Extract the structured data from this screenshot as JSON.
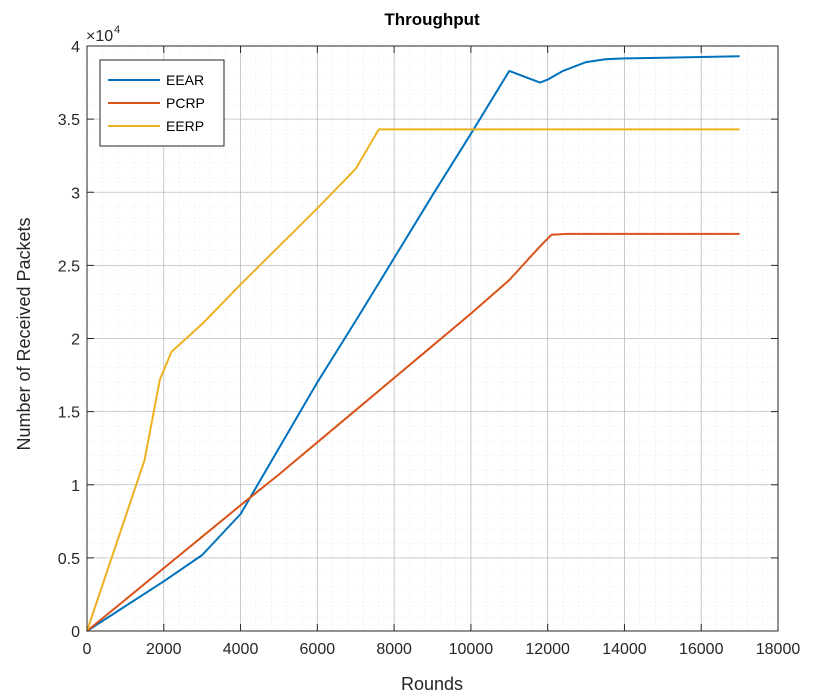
{
  "chart_data": {
    "type": "line",
    "title": "Throughput",
    "xlabel": "Rounds",
    "ylabel": "Number of Received Packets",
    "xlim": [
      0,
      18000
    ],
    "ylim": [
      0,
      40000
    ],
    "x_ticks": [
      "0",
      "2000",
      "4000",
      "6000",
      "8000",
      "10000",
      "12000",
      "14000",
      "16000",
      "18000"
    ],
    "y_ticks": [
      "0",
      "0.5",
      "1",
      "1.5",
      "2",
      "2.5",
      "3",
      "3.5",
      "4"
    ],
    "y_exponent_label": "×10",
    "y_exponent_power": "4",
    "grid": true,
    "minor_grid": true,
    "legend_position": "top-left",
    "series": [
      {
        "name": "EEAR",
        "color": "#0072BD",
        "points": [
          [
            0,
            0
          ],
          [
            1000,
            1700
          ],
          [
            2000,
            3400
          ],
          [
            3000,
            5200
          ],
          [
            4000,
            8000
          ],
          [
            5000,
            12500
          ],
          [
            6000,
            17000
          ],
          [
            7000,
            21200
          ],
          [
            8000,
            25500
          ],
          [
            9000,
            29800
          ],
          [
            10000,
            34000
          ],
          [
            11000,
            38300
          ],
          [
            11800,
            37500
          ],
          [
            12000,
            37700
          ],
          [
            12400,
            38300
          ],
          [
            13000,
            38900
          ],
          [
            13500,
            39100
          ],
          [
            14000,
            39150
          ],
          [
            15000,
            39200
          ],
          [
            16000,
            39250
          ],
          [
            17000,
            39300
          ]
        ]
      },
      {
        "name": "PCRP",
        "color": "#D95319",
        "points": [
          [
            0,
            0
          ],
          [
            1000,
            2150
          ],
          [
            2000,
            4300
          ],
          [
            3000,
            6450
          ],
          [
            4000,
            8600
          ],
          [
            5000,
            10700
          ],
          [
            6000,
            12900
          ],
          [
            7000,
            15100
          ],
          [
            8000,
            17300
          ],
          [
            9000,
            19500
          ],
          [
            10000,
            21700
          ],
          [
            11000,
            24000
          ],
          [
            11800,
            26300
          ],
          [
            12100,
            27100
          ],
          [
            12500,
            27150
          ],
          [
            14000,
            27150
          ],
          [
            17000,
            27150
          ]
        ]
      },
      {
        "name": "EERP",
        "color": "#EDB120",
        "points": [
          [
            0,
            0
          ],
          [
            1500,
            11700
          ],
          [
            1900,
            17200
          ],
          [
            2200,
            19100
          ],
          [
            2500,
            19800
          ],
          [
            3000,
            21000
          ],
          [
            4000,
            23700
          ],
          [
            5000,
            26300
          ],
          [
            6000,
            28900
          ],
          [
            7000,
            31600
          ],
          [
            7600,
            34300
          ],
          [
            10000,
            34300
          ],
          [
            17000,
            34300
          ]
        ]
      }
    ]
  }
}
